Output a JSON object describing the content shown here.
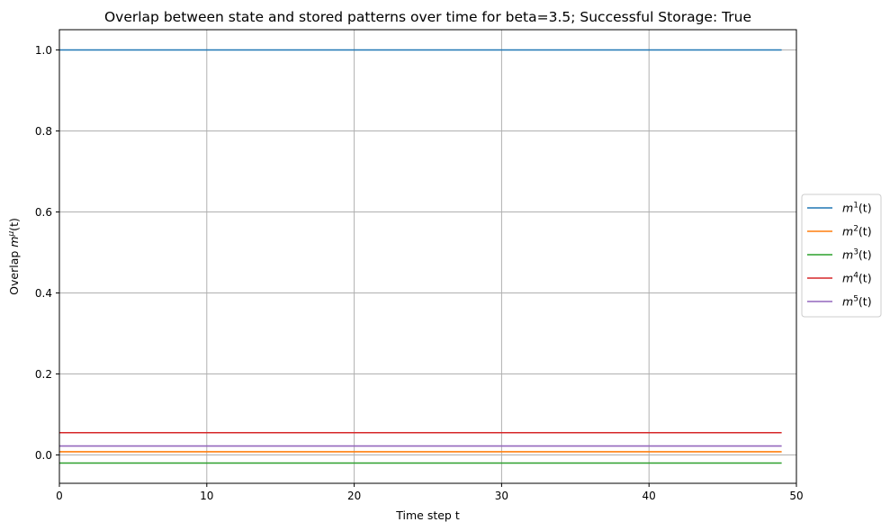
{
  "chart_data": {
    "type": "line",
    "title": "Overlap between state and stored patterns over time for beta=3.5; Successful Storage: True",
    "xlabel": "Time step t",
    "ylabel": {
      "prefix": "Overlap ",
      "var": "m",
      "sup": "μ",
      "suffix": "(t)"
    },
    "xlim": [
      0,
      50
    ],
    "ylim": [
      -0.07,
      1.05
    ],
    "x_ticks": [
      0,
      10,
      20,
      30,
      40,
      50
    ],
    "y_ticks": [
      0.0,
      0.2,
      0.4,
      0.6,
      0.8,
      1.0
    ],
    "grid": true,
    "legend_position": "center-right-outside",
    "x_range": [
      0,
      49
    ],
    "series": [
      {
        "name": "m",
        "sup": "1",
        "suffix": "(t)",
        "value": 1.0,
        "color": "#1f77b4"
      },
      {
        "name": "m",
        "sup": "2",
        "suffix": "(t)",
        "value": 0.008,
        "color": "#ff7f0e"
      },
      {
        "name": "m",
        "sup": "3",
        "suffix": "(t)",
        "value": -0.02,
        "color": "#2ca02c"
      },
      {
        "name": "m",
        "sup": "4",
        "suffix": "(t)",
        "value": 0.055,
        "color": "#d62728"
      },
      {
        "name": "m",
        "sup": "5",
        "suffix": "(t)",
        "value": 0.022,
        "color": "#9467bd"
      }
    ]
  }
}
